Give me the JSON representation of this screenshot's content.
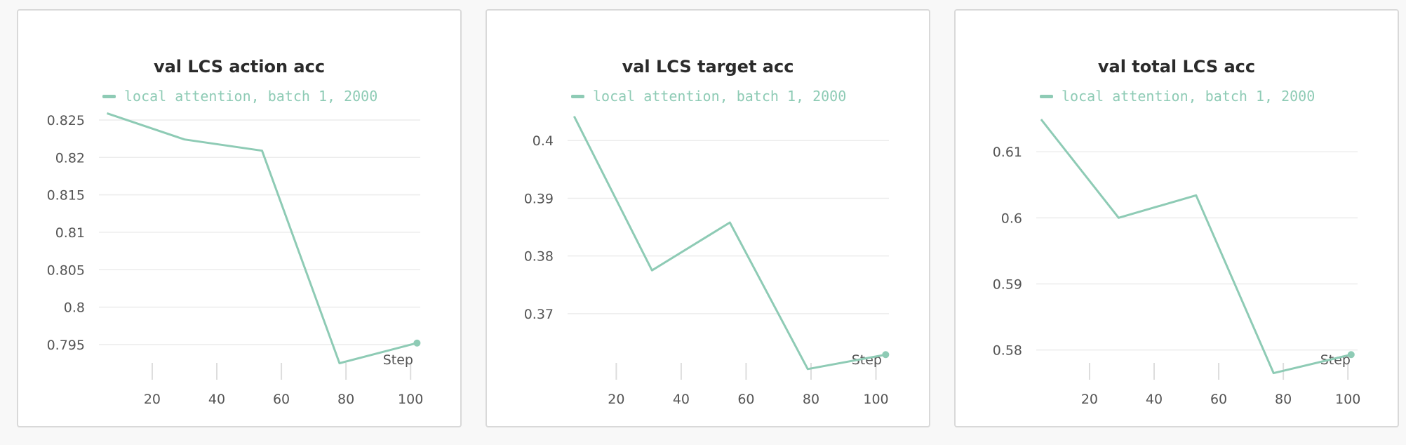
{
  "series_color": "#8ecbb5",
  "chart_data": [
    {
      "type": "line",
      "title": "val LCS action acc",
      "legend": "local attention, batch 1, 2000",
      "xlabel": "Step",
      "x_ticks": [
        20,
        40,
        60,
        80,
        100
      ],
      "y_ticks": [
        0.795,
        0.8,
        0.805,
        0.81,
        0.815,
        0.82,
        0.825
      ],
      "y_tick_labels": [
        "0.795",
        "0.8",
        "0.805",
        "0.81",
        "0.815",
        "0.82",
        "0.825"
      ],
      "xlim": [
        3.5,
        103
      ],
      "ylim": [
        0.7918,
        0.8265
      ],
      "x": [
        6,
        30,
        54,
        78,
        102
      ],
      "y": [
        0.8259,
        0.8224,
        0.8209,
        0.7925,
        0.7952
      ]
    },
    {
      "type": "line",
      "title": "val LCS target acc",
      "legend": "local attention, batch 1, 2000",
      "xlabel": "Step",
      "x_ticks": [
        20,
        40,
        60,
        80,
        100
      ],
      "y_ticks": [
        0.37,
        0.38,
        0.39,
        0.4
      ],
      "y_tick_labels": [
        "0.37",
        "0.38",
        "0.39",
        "0.4"
      ],
      "xlim": [
        5,
        104
      ],
      "ylim": [
        0.3605,
        0.4055
      ],
      "x": [
        7,
        31,
        55,
        79,
        103
      ],
      "y": [
        0.4042,
        0.3775,
        0.3858,
        0.3604,
        0.3629
      ]
    },
    {
      "type": "line",
      "title": "val total LCS acc",
      "legend": "local attention, batch 1, 2000",
      "xlabel": "Step",
      "x_ticks": [
        20,
        40,
        60,
        80,
        100
      ],
      "y_ticks": [
        0.58,
        0.59,
        0.6,
        0.61
      ],
      "y_tick_labels": [
        "0.58",
        "0.59",
        "0.6",
        "0.61"
      ],
      "xlim": [
        3.5,
        103
      ],
      "ylim": [
        0.5772,
        0.6165
      ],
      "x": [
        5,
        29,
        53,
        77,
        101
      ],
      "y": [
        0.6149,
        0.6,
        0.6034,
        0.5765,
        0.5793
      ]
    }
  ]
}
